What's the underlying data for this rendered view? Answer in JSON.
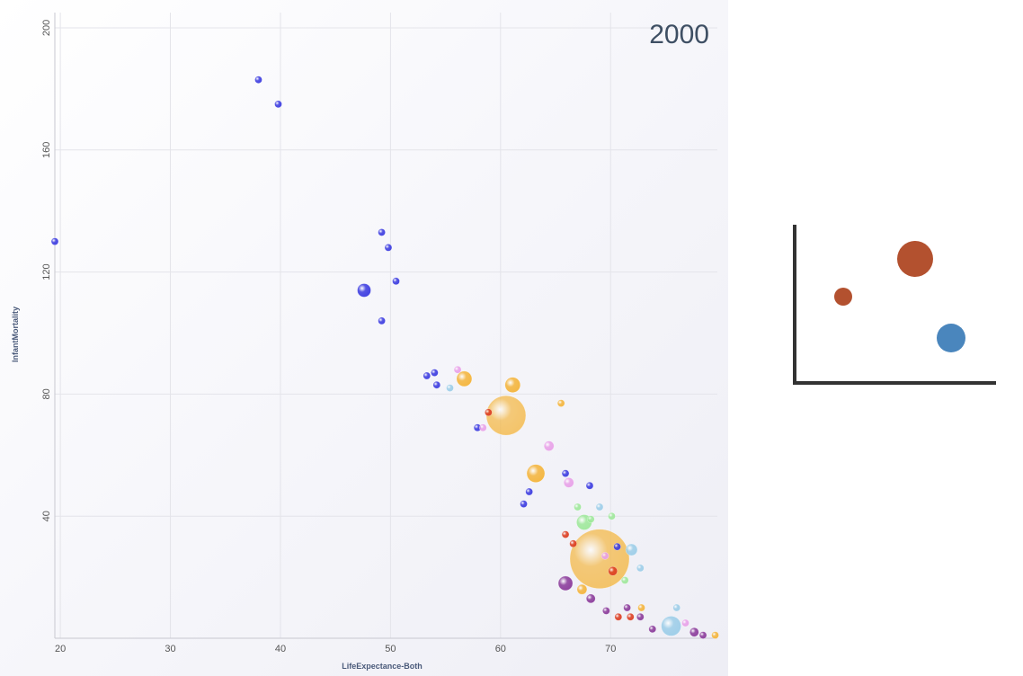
{
  "chart_data": {
    "type": "scatter",
    "title": "2000",
    "xlabel": "LifeExpectance-Both",
    "ylabel": "InfantMortality",
    "xlim": [
      19.5,
      79.7
    ],
    "ylim": [
      0,
      205
    ],
    "xticks": [
      "20",
      "30",
      "40",
      "50",
      "60",
      "70"
    ],
    "yticks": [
      "40",
      "80",
      "120",
      "160",
      "200"
    ],
    "grid": true,
    "bubble_sizes": "relative",
    "series": [
      {
        "color": "#3a3ae0",
        "points": [
          {
            "x": 19.5,
            "y": 130,
            "r": 4
          },
          {
            "x": 38,
            "y": 183,
            "r": 4
          },
          {
            "x": 39.8,
            "y": 175,
            "r": 4
          },
          {
            "x": 49.2,
            "y": 133,
            "r": 4
          },
          {
            "x": 49.8,
            "y": 128,
            "r": 4
          },
          {
            "x": 50.5,
            "y": 117,
            "r": 4
          },
          {
            "x": 47.6,
            "y": 114,
            "r": 7.5
          },
          {
            "x": 49.2,
            "y": 104,
            "r": 4
          },
          {
            "x": 53.3,
            "y": 86,
            "r": 4
          },
          {
            "x": 54,
            "y": 87,
            "r": 4
          },
          {
            "x": 54.2,
            "y": 83,
            "r": 4
          },
          {
            "x": 57.9,
            "y": 69,
            "r": 4
          },
          {
            "x": 65.9,
            "y": 54,
            "r": 4
          },
          {
            "x": 68.1,
            "y": 50,
            "r": 4
          },
          {
            "x": 62.6,
            "y": 48,
            "r": 4
          },
          {
            "x": 62.1,
            "y": 44,
            "r": 4
          },
          {
            "x": 70.6,
            "y": 30,
            "r": 4
          }
        ]
      },
      {
        "color": "#f4b43a",
        "points": [
          {
            "x": 56.7,
            "y": 85,
            "r": 8.5
          },
          {
            "x": 61.1,
            "y": 83,
            "r": 8.5
          },
          {
            "x": 65.5,
            "y": 77,
            "r": 4
          },
          {
            "x": 60.5,
            "y": 73,
            "r": 22
          },
          {
            "x": 63.2,
            "y": 54,
            "r": 10
          },
          {
            "x": 69,
            "y": 26,
            "r": 33
          },
          {
            "x": 67.4,
            "y": 16,
            "r": 5.5
          },
          {
            "x": 72.8,
            "y": 10,
            "r": 4
          },
          {
            "x": 79.5,
            "y": 1,
            "r": 4
          }
        ]
      },
      {
        "color": "#e8a0e8",
        "points": [
          {
            "x": 56.1,
            "y": 88,
            "r": 4
          },
          {
            "x": 58.4,
            "y": 69,
            "r": 4
          },
          {
            "x": 64.4,
            "y": 63,
            "r": 5.5
          },
          {
            "x": 66.2,
            "y": 51,
            "r": 5.5
          },
          {
            "x": 69.5,
            "y": 27,
            "r": 4
          },
          {
            "x": 76.8,
            "y": 5,
            "r": 4
          }
        ]
      },
      {
        "color": "#9ccde8",
        "points": [
          {
            "x": 55.4,
            "y": 82,
            "r": 4
          },
          {
            "x": 69,
            "y": 43,
            "r": 4
          },
          {
            "x": 71.9,
            "y": 29,
            "r": 6.5
          },
          {
            "x": 72.7,
            "y": 23,
            "r": 4
          },
          {
            "x": 75.5,
            "y": 4,
            "r": 11
          },
          {
            "x": 76,
            "y": 10,
            "r": 4
          }
        ]
      },
      {
        "color": "#dc3c20",
        "points": [
          {
            "x": 58.9,
            "y": 74,
            "r": 4
          },
          {
            "x": 65.9,
            "y": 34,
            "r": 4
          },
          {
            "x": 66.6,
            "y": 31,
            "r": 4
          },
          {
            "x": 70.2,
            "y": 22,
            "r": 5
          },
          {
            "x": 71.8,
            "y": 7,
            "r": 4
          },
          {
            "x": 70.7,
            "y": 7,
            "r": 4
          }
        ]
      },
      {
        "color": "#9ee89a",
        "points": [
          {
            "x": 67,
            "y": 43,
            "r": 4
          },
          {
            "x": 67.6,
            "y": 38,
            "r": 8.5
          },
          {
            "x": 68.2,
            "y": 39,
            "r": 4
          },
          {
            "x": 70.1,
            "y": 40,
            "r": 4
          },
          {
            "x": 71.3,
            "y": 19,
            "r": 4
          }
        ]
      },
      {
        "color": "#8a3a9a",
        "points": [
          {
            "x": 65.9,
            "y": 18,
            "r": 8
          },
          {
            "x": 68.2,
            "y": 13,
            "r": 5
          },
          {
            "x": 69.6,
            "y": 9,
            "r": 4
          },
          {
            "x": 71.5,
            "y": 10,
            "r": 4
          },
          {
            "x": 72.7,
            "y": 7,
            "r": 4
          },
          {
            "x": 73.8,
            "y": 3,
            "r": 4
          },
          {
            "x": 77.6,
            "y": 2,
            "r": 5
          },
          {
            "x": 78.4,
            "y": 1,
            "r": 4
          }
        ]
      }
    ]
  },
  "legend_icon": {
    "bubbles": [
      {
        "color": "#b3512f",
        "size": "small"
      },
      {
        "color": "#b3512f",
        "size": "large"
      },
      {
        "color": "#4a86bd",
        "size": "medium"
      }
    ],
    "axis_color": "#333333"
  }
}
